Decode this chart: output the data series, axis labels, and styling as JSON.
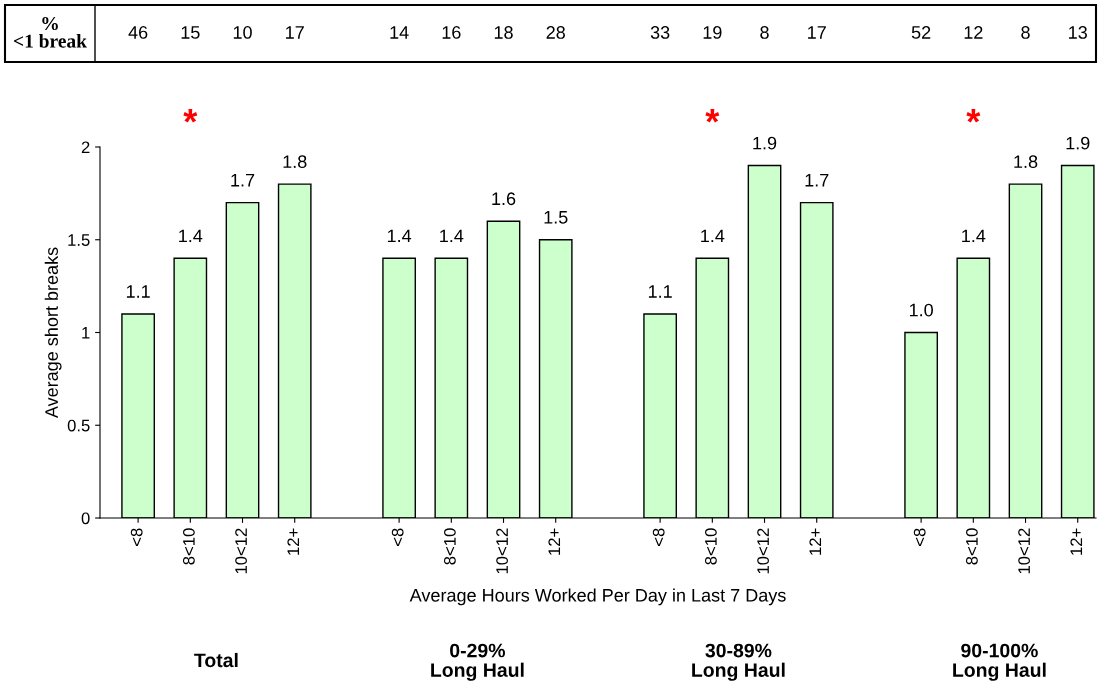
{
  "chart_data": {
    "type": "bar",
    "ylabel": "Average short breaks",
    "xlabel": "Average Hours Worked Per Day in Last 7 Days",
    "categories": [
      "<8",
      "8<10",
      "10<12",
      "12+",
      null,
      "<8",
      "8<10",
      "10<12",
      "12+",
      null,
      "<8",
      "8<10",
      "10<12",
      "12+",
      null,
      "<8",
      "8<10",
      "10<12",
      "12+"
    ],
    "values": [
      1.1,
      1.4,
      1.7,
      1.8,
      null,
      1.4,
      1.4,
      1.6,
      1.5,
      null,
      1.1,
      1.4,
      1.9,
      1.7,
      null,
      1.0,
      1.4,
      1.8,
      1.9
    ],
    "value_labels": [
      "1.1",
      "1.4",
      "1.7",
      "1.8",
      null,
      "1.4",
      "1.4",
      "1.6",
      "1.5",
      null,
      "1.1",
      "1.4",
      "1.9",
      "1.7",
      null,
      "1.0",
      "1.4",
      "1.8",
      "1.9"
    ],
    "color": "#ccffcc",
    "ylim": [
      0,
      2
    ],
    "yticks": [
      0,
      0.5,
      1,
      1.5,
      2
    ],
    "grid": false,
    "legend": false,
    "annotations": [
      "% <1 break",
      "46",
      "15",
      "10",
      "17",
      "14",
      "16",
      "18",
      "28",
      "33",
      "19",
      "8",
      "17",
      "52",
      "12",
      "8",
      "13",
      "Total",
      "*",
      "0-29%\nLong Haul",
      "30-89%\nLong Haul",
      "*",
      "90-100%\nLong Haul",
      "*"
    ]
  }
}
